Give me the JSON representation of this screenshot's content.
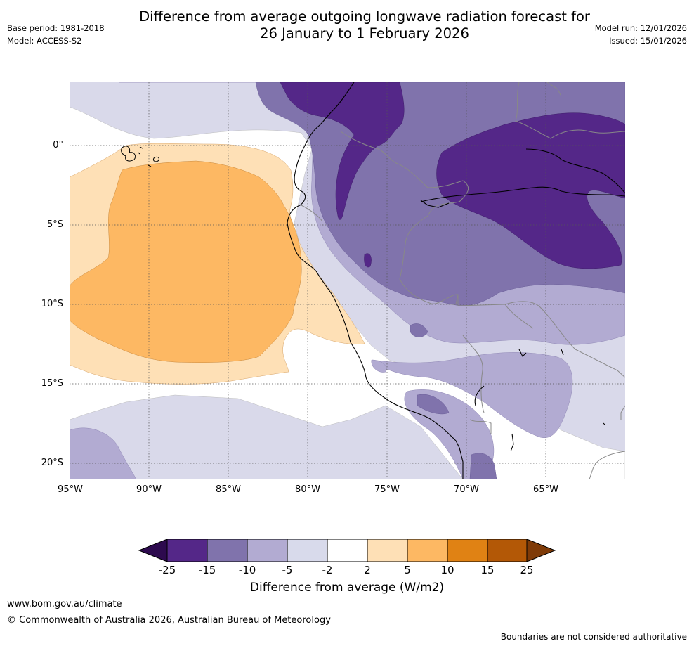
{
  "title": {
    "line1": "Difference from average outgoing longwave radiation forecast for",
    "line2": "26 January to 1 February 2026"
  },
  "meta_left": {
    "base_period": "Base period: 1981-2018",
    "model": "Model: ACCESS-S2"
  },
  "meta_right": {
    "model_run": "Model run: 12/01/2026",
    "issued": "Issued: 15/01/2026"
  },
  "map": {
    "lat_labels": [
      "0°",
      "5°S",
      "10°S",
      "15°S",
      "20°S"
    ],
    "lon_labels": [
      "95°W",
      "90°W",
      "85°W",
      "80°W",
      "75°W",
      "70°W",
      "65°W"
    ]
  },
  "colorbar": {
    "ticks": [
      "-25",
      "-15",
      "-10",
      "-5",
      "-2",
      "2",
      "5",
      "10",
      "15",
      "25"
    ],
    "label": "Difference from average (W/m2)",
    "colors": {
      "below_min": "#2d0a4e",
      "c1": "#542788",
      "c2": "#8073ac",
      "c3": "#b2abd2",
      "c4": "#d8daeb",
      "c5": "#ffffff",
      "c6": "#fee0b6",
      "c7": "#fdb863",
      "c8": "#e08214",
      "c9": "#b35806",
      "above_max": "#7f3b08"
    }
  },
  "footer": {
    "website": "www.bom.gov.au/climate",
    "copyright": "© Commonwealth of Australia 2026, Australian Bureau of Meteorology",
    "disclaimer": "Boundaries are not considered authoritative"
  }
}
